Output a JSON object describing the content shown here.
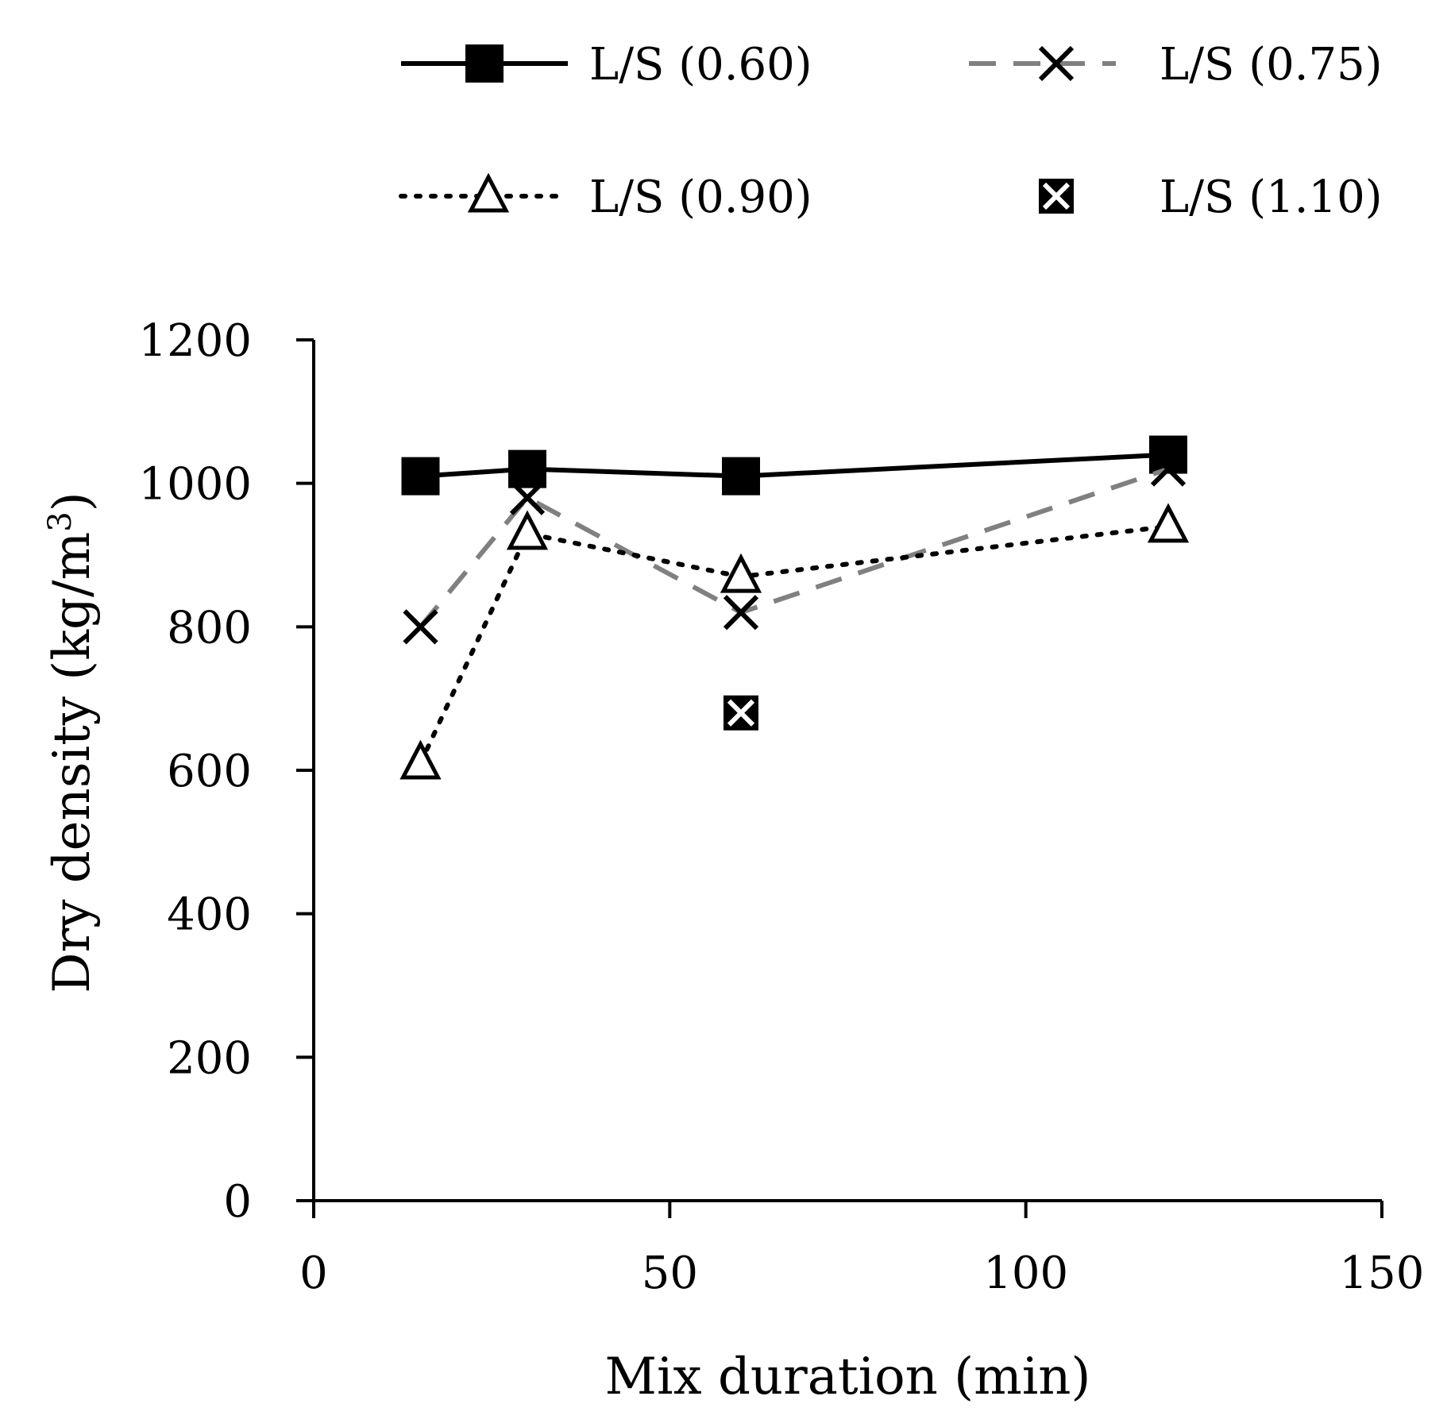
{
  "chart_data": {
    "type": "line",
    "title": "",
    "xlabel": "Mix duration (min)",
    "ylabel_main": "Dry density (kg/m",
    "ylabel_sup": "3",
    "ylabel_end": ")",
    "xlim": [
      0,
      150
    ],
    "ylim": [
      0,
      1200
    ],
    "xticks": [
      0,
      50,
      100,
      150
    ],
    "yticks": [
      0,
      200,
      400,
      600,
      800,
      1000,
      1200
    ],
    "grid": false,
    "legend_position": "top",
    "series": [
      {
        "name": "L/S (0.60)",
        "x": [
          15,
          30,
          60,
          120
        ],
        "values": [
          1010,
          1020,
          1010,
          1040
        ],
        "color": "#000000",
        "line": "solid",
        "marker": "filled-square"
      },
      {
        "name": "L/S (0.75)",
        "x": [
          15,
          30,
          60,
          120
        ],
        "values": [
          800,
          980,
          820,
          1020
        ],
        "color": "#808080",
        "marker_color": "#000000",
        "line": "dashed",
        "marker": "x"
      },
      {
        "name": "L/S (0.90)",
        "x": [
          15,
          30,
          60,
          120
        ],
        "values": [
          610,
          930,
          870,
          940
        ],
        "color": "#000000",
        "line": "dotted",
        "marker": "open-triangle"
      },
      {
        "name": "L/S (1.10)",
        "x": [
          60
        ],
        "values": [
          680
        ],
        "color": "#000000",
        "line": "none",
        "marker": "boxed-x"
      }
    ]
  }
}
